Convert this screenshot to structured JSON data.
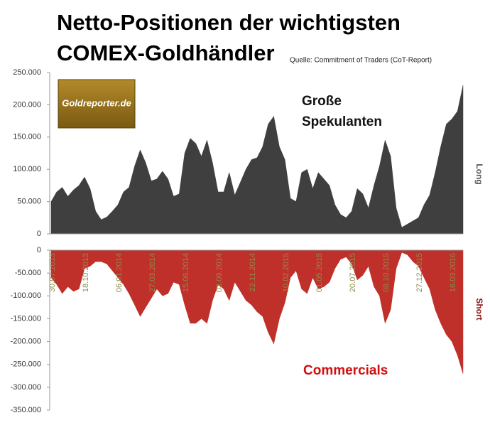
{
  "title": [
    "Netto-Positionen der wichtigsten",
    "COMEX-Goldhändler"
  ],
  "source": "Quelle: Commitment of Traders (CoT-Report)",
  "logo": "Goldreporter.de",
  "chart_data": [
    {
      "type": "area",
      "axis_label": "Long",
      "annotation": [
        "Große",
        "Spekulanten"
      ],
      "color": "#3f3f3f",
      "ylim": [
        0,
        250000
      ],
      "yticks": [
        0,
        {
          "value": 50000,
          "label": "50.000"
        },
        {
          "value": 100000,
          "label": "100.000"
        },
        {
          "value": 150000,
          "label": "150.000"
        },
        {
          "value": 200000,
          "label": "200.000"
        },
        {
          "value": 250000,
          "label": "250.000"
        }
      ],
      "values": [
        50000,
        65000,
        72000,
        58000,
        68000,
        75000,
        88000,
        70000,
        35000,
        22000,
        26000,
        35000,
        45000,
        65000,
        72000,
        105000,
        130000,
        110000,
        82000,
        85000,
        97000,
        85000,
        58000,
        62000,
        125000,
        148000,
        140000,
        120000,
        145000,
        110000,
        65000,
        65000,
        95000,
        60000,
        80000,
        100000,
        115000,
        118000,
        135000,
        170000,
        182000,
        135000,
        115000,
        55000,
        50000,
        95000,
        100000,
        70000,
        95000,
        85000,
        75000,
        45000,
        30000,
        25000,
        35000,
        70000,
        62000,
        40000,
        75000,
        105000,
        145000,
        120000,
        40000,
        10000,
        15000,
        20000,
        25000,
        45000,
        60000,
        95000,
        135000,
        170000,
        178000,
        190000,
        230000
      ]
    },
    {
      "type": "area",
      "axis_label": "Short",
      "annotation": [
        "Commercials"
      ],
      "color": "#c0302a",
      "ylim": [
        -350000,
        0
      ],
      "yticks": [
        {
          "value": -350000,
          "label": "-350.000"
        },
        {
          "value": -300000,
          "label": "-300.000"
        },
        {
          "value": -250000,
          "label": "-250.000"
        },
        {
          "value": -200000,
          "label": "-200.000"
        },
        {
          "value": -150000,
          "label": "-150.000"
        },
        {
          "value": -100000,
          "label": "-100.000"
        },
        {
          "value": -50000,
          "label": "-50.000"
        },
        0
      ],
      "categories": [
        "30.07.2013",
        null,
        null,
        null,
        null,
        null,
        "18.10.2013",
        null,
        null,
        null,
        null,
        null,
        "06.01.2014",
        null,
        null,
        null,
        null,
        null,
        "27.03.2014",
        null,
        null,
        null,
        null,
        null,
        "15.06.2014",
        null,
        null,
        null,
        null,
        null,
        "03.09.2014",
        null,
        null,
        null,
        null,
        null,
        "22.11.2014",
        null,
        null,
        null,
        null,
        null,
        "10.02.2015",
        null,
        null,
        null,
        null,
        null,
        "01.05.2015",
        null,
        null,
        null,
        null,
        null,
        "20.07.2015",
        null,
        null,
        null,
        null,
        null,
        "08.10.2015",
        null,
        null,
        null,
        null,
        null,
        "27.12.2015",
        null,
        null,
        null,
        null,
        null,
        "16.03.2016",
        null,
        null
      ],
      "values": [
        -60000,
        -75000,
        -95000,
        -80000,
        -90000,
        -85000,
        -40000,
        -35000,
        -25000,
        -25000,
        -30000,
        -45000,
        -60000,
        -75000,
        -95000,
        -120000,
        -145000,
        -125000,
        -105000,
        -85000,
        -100000,
        -95000,
        -70000,
        -75000,
        -120000,
        -160000,
        -160000,
        -150000,
        -160000,
        -110000,
        -75000,
        -85000,
        -110000,
        -70000,
        -90000,
        -110000,
        -120000,
        -135000,
        -145000,
        -180000,
        -205000,
        -150000,
        -115000,
        -60000,
        -45000,
        -85000,
        -95000,
        -60000,
        -85000,
        -80000,
        -70000,
        -40000,
        -20000,
        -15000,
        -30000,
        -65000,
        -55000,
        -35000,
        -80000,
        -100000,
        -160000,
        -130000,
        -40000,
        -5000,
        -10000,
        -25000,
        -35000,
        -60000,
        -85000,
        -130000,
        -160000,
        -185000,
        -200000,
        -230000,
        -270000
      ]
    }
  ]
}
